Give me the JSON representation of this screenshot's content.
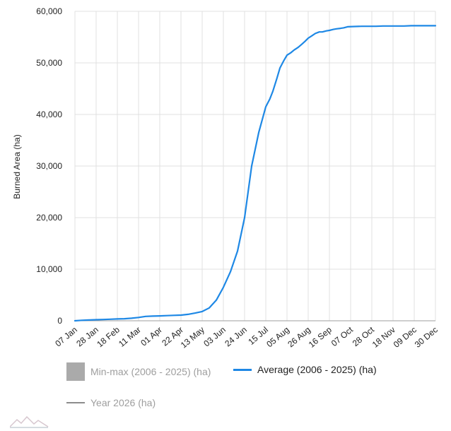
{
  "chart_data": {
    "type": "line",
    "ylabel": "Burned Area (ha)",
    "xlabel": "",
    "ylim": [
      0,
      60000
    ],
    "yticks": [
      0,
      10000,
      20000,
      30000,
      40000,
      50000,
      60000
    ],
    "ytick_labels": [
      "0",
      "10,000",
      "20,000",
      "30,000",
      "40,000",
      "50,000",
      "60,000"
    ],
    "categories": [
      "07 Jan",
      "28 Jan",
      "18 Feb",
      "11 Mar",
      "01 Apr",
      "22 Apr",
      "13 May",
      "03 Jun",
      "24 Jun",
      "15 Jul",
      "05 Aug",
      "26 Aug",
      "16 Sep",
      "07 Oct",
      "28 Oct",
      "18 Nov",
      "09 Dec",
      "30 Dec"
    ],
    "grid": true,
    "legend_position": "bottom-left",
    "series": [
      {
        "name": "Average (2006 - 2025) (ha)",
        "color": "#1e88e5",
        "x": [
          0,
          7,
          14,
          21,
          28,
          35,
          42,
          49,
          56,
          63,
          70,
          77,
          84,
          91,
          98,
          105,
          112,
          119,
          126,
          133,
          140,
          147,
          154,
          161,
          168,
          175,
          182,
          189,
          193,
          196,
          200,
          203,
          207,
          210,
          214,
          217,
          221,
          224,
          228,
          231,
          235,
          238,
          242,
          245,
          249,
          252,
          256,
          259,
          263,
          266,
          270,
          277,
          284,
          291,
          298,
          305,
          312,
          319,
          326,
          333,
          340,
          347,
          357
        ],
        "values": [
          0,
          100,
          150,
          200,
          250,
          300,
          350,
          400,
          500,
          650,
          850,
          900,
          950,
          1000,
          1050,
          1100,
          1250,
          1500,
          1800,
          2500,
          4000,
          6500,
          9500,
          13500,
          20000,
          30000,
          36500,
          41500,
          43000,
          44500,
          47000,
          49000,
          50500,
          51500,
          52000,
          52500,
          53000,
          53500,
          54200,
          54800,
          55300,
          55700,
          56000,
          56000,
          56200,
          56300,
          56500,
          56600,
          56700,
          56800,
          57000,
          57050,
          57100,
          57100,
          57100,
          57150,
          57150,
          57150,
          57150,
          57200,
          57200,
          57200,
          57200
        ]
      }
    ],
    "legend": [
      {
        "name": "Min-max (2006 - 2025) (ha)",
        "color": "#aaaaaa"
      },
      {
        "name": "Average (2006 - 2025) (ha)",
        "color": "#1e88e5"
      },
      {
        "name": "Year 2026 (ha)",
        "color": "#8c8c8c"
      }
    ]
  }
}
